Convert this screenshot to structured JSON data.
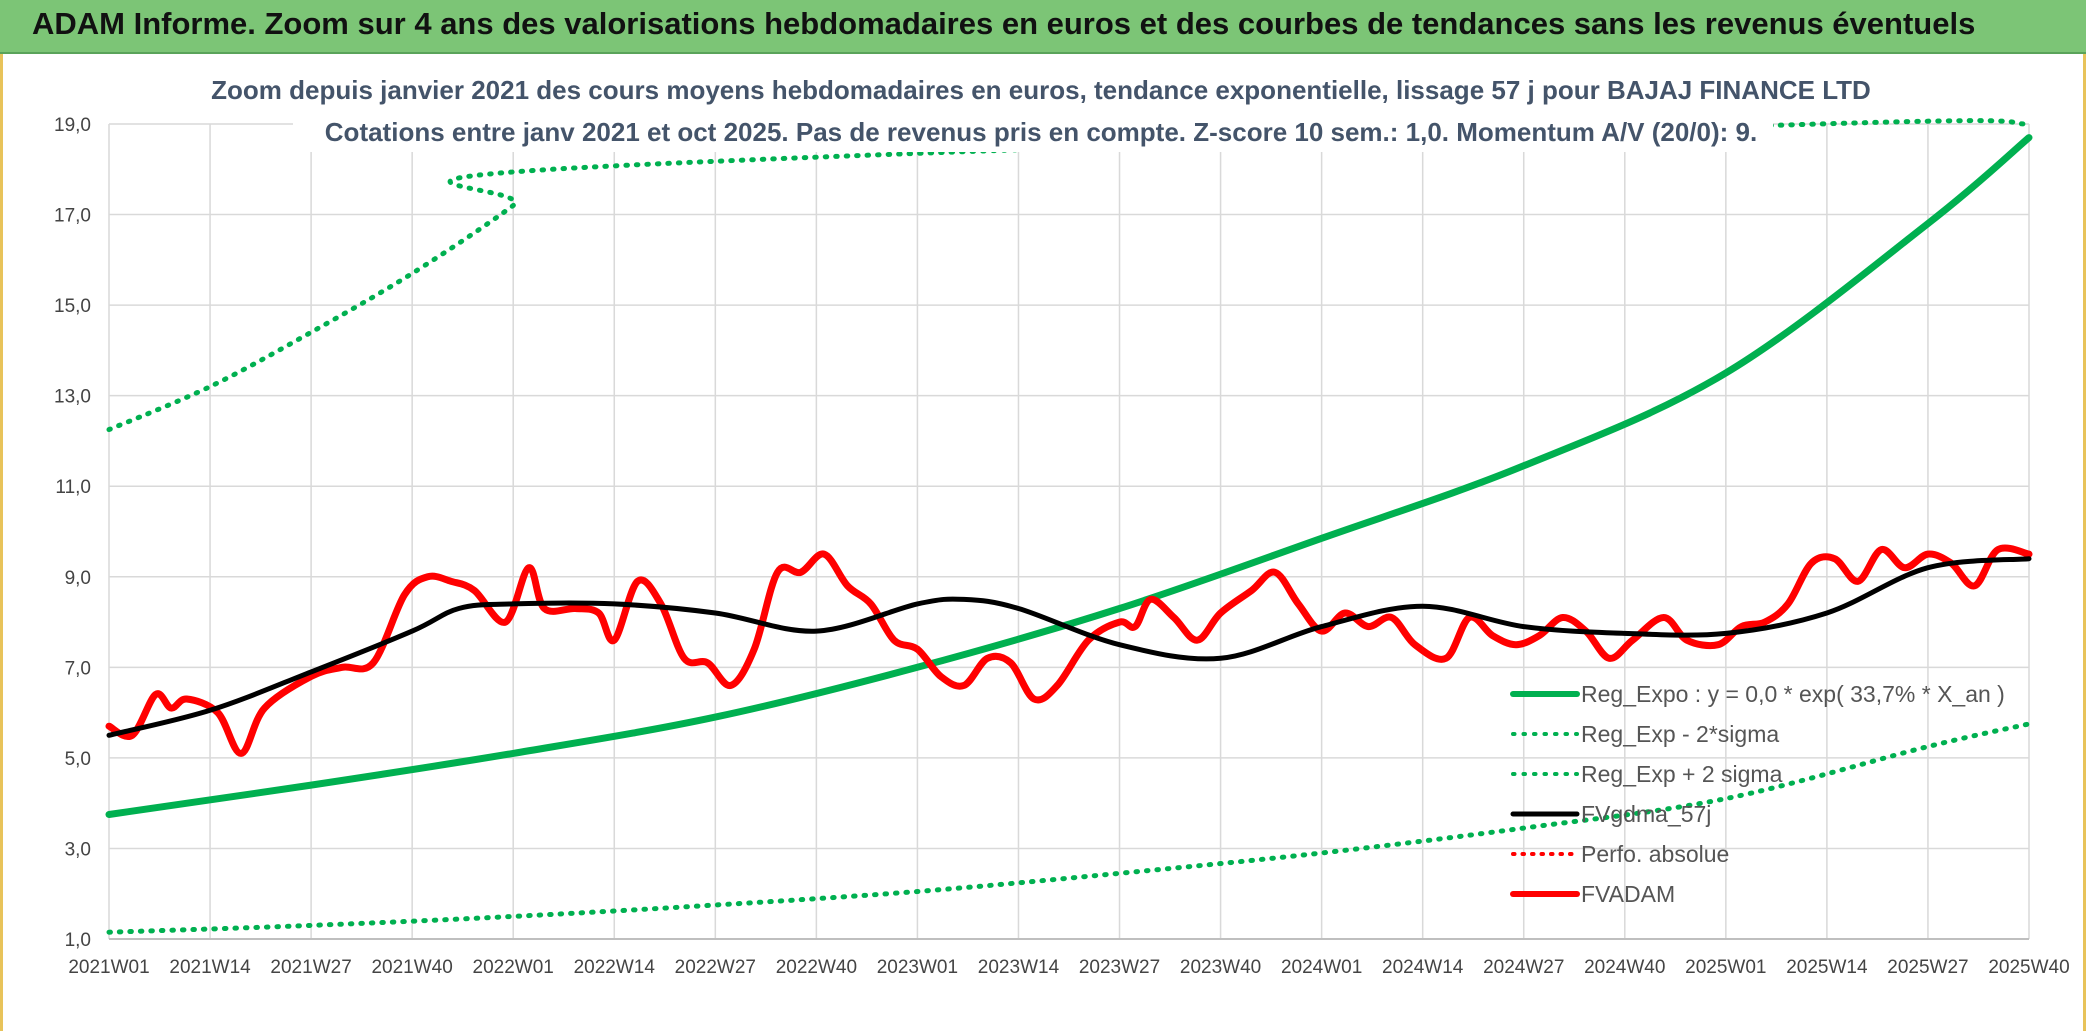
{
  "header": {
    "title": "ADAM Informe. Zoom sur 4 ans des valorisations hebdomadaires en euros et des courbes de tendances sans les revenus éventuels"
  },
  "colors": {
    "banner": "#7cc576",
    "reg_expo": "#00b050",
    "sigma": "#00b050",
    "fvgdma": "#000000",
    "perfo": "#ff0000",
    "fvadam": "#ff0000",
    "grid": "#d9d9d9"
  },
  "chart_data": {
    "type": "line",
    "title": "Zoom depuis janvier 2021 des cours moyens hebdomadaires en euros, tendance exponentielle, lissage 57 j pour BAJAJ FINANCE LTD",
    "subtitle": "Cotations entre janv 2021 et oct 2025. Pas de revenus pris en compte. Z-score 10 sem.: 1,0. Momentum A/V (20/0): 9.",
    "xlabel": "",
    "ylabel": "",
    "ylim": [
      1,
      19
    ],
    "yticks": [
      "1,0",
      "3,0",
      "5,0",
      "7,0",
      "9,0",
      "11,0",
      "13,0",
      "15,0",
      "17,0",
      "19,0"
    ],
    "xticks": [
      "2021W01",
      "2021W14",
      "2021W27",
      "2021W40",
      "2022W01",
      "2022W14",
      "2022W27",
      "2022W40",
      "2023W01",
      "2023W14",
      "2023W27",
      "2023W40",
      "2024W01",
      "2024W14",
      "2024W27",
      "2024W40",
      "2025W01",
      "2025W14",
      "2025W27",
      "2025W40"
    ],
    "x_range_weeks": [
      0,
      247
    ],
    "grid": true,
    "legend_position": "bottom-right",
    "series": [
      {
        "name": "Reg_Expo : y = 0,0 * exp( 33,7% *  X_an )",
        "style": "solid-thick",
        "keypoints": [
          [
            0,
            3.75
          ],
          [
            26,
            4.4
          ],
          [
            52,
            5.1
          ],
          [
            78,
            5.9
          ],
          [
            104,
            7.0
          ],
          [
            130,
            8.3
          ],
          [
            156,
            9.85
          ],
          [
            182,
            11.45
          ],
          [
            208,
            13.5
          ],
          [
            234,
            16.8
          ],
          [
            247,
            18.7
          ]
        ]
      },
      {
        "name": "Reg_Exp - 2*sigma",
        "style": "dotted",
        "keypoints": [
          [
            0,
            1.15
          ],
          [
            26,
            1.3
          ],
          [
            52,
            1.5
          ],
          [
            78,
            1.75
          ],
          [
            104,
            2.05
          ],
          [
            130,
            2.45
          ],
          [
            156,
            2.9
          ],
          [
            182,
            3.45
          ],
          [
            208,
            4.1
          ],
          [
            234,
            5.25
          ],
          [
            247,
            5.75
          ]
        ]
      },
      {
        "name": "Reg_Exp + 2 sigma",
        "style": "dotted",
        "keypoints": [
          [
            0,
            12.25
          ],
          [
            13,
            13.2
          ],
          [
            26,
            14.4
          ],
          [
            39,
            15.7
          ],
          [
            52,
            17.2
          ],
          [
            57,
            18.0
          ],
          [
            220,
            19.0
          ],
          [
            247,
            19.0
          ]
        ]
      },
      {
        "name": "FVgdma_57j",
        "style": "solid",
        "keypoints": [
          [
            0,
            5.5
          ],
          [
            13,
            6.05
          ],
          [
            26,
            6.9
          ],
          [
            39,
            7.8
          ],
          [
            45,
            8.3
          ],
          [
            52,
            8.4
          ],
          [
            65,
            8.4
          ],
          [
            78,
            8.2
          ],
          [
            91,
            7.8
          ],
          [
            104,
            8.4
          ],
          [
            110,
            8.5
          ],
          [
            117,
            8.3
          ],
          [
            130,
            7.5
          ],
          [
            143,
            7.2
          ],
          [
            156,
            7.9
          ],
          [
            169,
            8.35
          ],
          [
            182,
            7.9
          ],
          [
            195,
            7.75
          ],
          [
            208,
            7.75
          ],
          [
            221,
            8.2
          ],
          [
            234,
            9.2
          ],
          [
            247,
            9.4
          ]
        ]
      },
      {
        "name": "Perfo. absolue",
        "style": "dotted",
        "keypoints": []
      },
      {
        "name": "FVADAM",
        "style": "solid-thick",
        "keypoints": [
          [
            0,
            5.7
          ],
          [
            3,
            5.5
          ],
          [
            6,
            6.4
          ],
          [
            8,
            6.1
          ],
          [
            10,
            6.3
          ],
          [
            14,
            6.0
          ],
          [
            17,
            5.1
          ],
          [
            20,
            6.1
          ],
          [
            26,
            6.8
          ],
          [
            30,
            7.0
          ],
          [
            34,
            7.1
          ],
          [
            38,
            8.6
          ],
          [
            41,
            9.0
          ],
          [
            44,
            8.9
          ],
          [
            47,
            8.7
          ],
          [
            51,
            8.0
          ],
          [
            54,
            9.2
          ],
          [
            56,
            8.3
          ],
          [
            60,
            8.3
          ],
          [
            63,
            8.2
          ],
          [
            65,
            7.6
          ],
          [
            68,
            8.9
          ],
          [
            71,
            8.4
          ],
          [
            74,
            7.2
          ],
          [
            77,
            7.1
          ],
          [
            80,
            6.6
          ],
          [
            83,
            7.4
          ],
          [
            86,
            9.1
          ],
          [
            89,
            9.1
          ],
          [
            92,
            9.5
          ],
          [
            95,
            8.8
          ],
          [
            98,
            8.4
          ],
          [
            101,
            7.6
          ],
          [
            104,
            7.4
          ],
          [
            107,
            6.8
          ],
          [
            110,
            6.6
          ],
          [
            113,
            7.2
          ],
          [
            116,
            7.1
          ],
          [
            119,
            6.3
          ],
          [
            122,
            6.6
          ],
          [
            126,
            7.6
          ],
          [
            130,
            8.0
          ],
          [
            132,
            7.9
          ],
          [
            134,
            8.5
          ],
          [
            137,
            8.1
          ],
          [
            140,
            7.6
          ],
          [
            143,
            8.2
          ],
          [
            147,
            8.7
          ],
          [
            150,
            9.1
          ],
          [
            153,
            8.4
          ],
          [
            156,
            7.8
          ],
          [
            159,
            8.2
          ],
          [
            162,
            7.9
          ],
          [
            165,
            8.1
          ],
          [
            168,
            7.5
          ],
          [
            172,
            7.2
          ],
          [
            175,
            8.1
          ],
          [
            178,
            7.7
          ],
          [
            181,
            7.5
          ],
          [
            184,
            7.7
          ],
          [
            187,
            8.1
          ],
          [
            190,
            7.8
          ],
          [
            193,
            7.2
          ],
          [
            196,
            7.6
          ],
          [
            200,
            8.1
          ],
          [
            203,
            7.6
          ],
          [
            207,
            7.5
          ],
          [
            210,
            7.9
          ],
          [
            213,
            8.0
          ],
          [
            216,
            8.4
          ],
          [
            219,
            9.3
          ],
          [
            222,
            9.4
          ],
          [
            225,
            8.9
          ],
          [
            228,
            9.6
          ],
          [
            231,
            9.2
          ],
          [
            234,
            9.5
          ],
          [
            237,
            9.3
          ],
          [
            240,
            8.8
          ],
          [
            243,
            9.6
          ],
          [
            247,
            9.5
          ]
        ]
      }
    ]
  }
}
